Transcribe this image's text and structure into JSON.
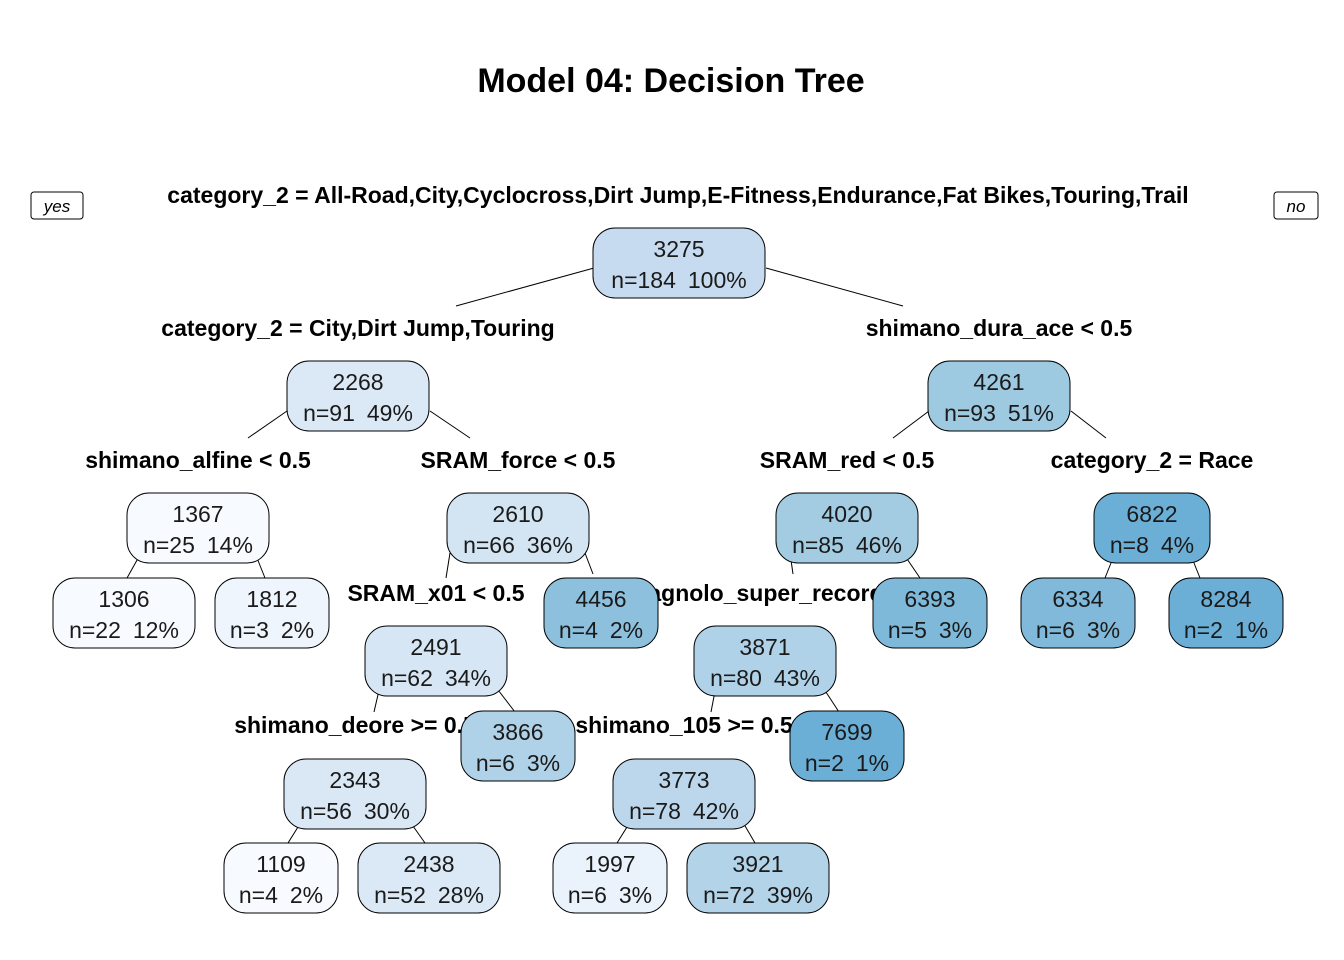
{
  "title": "Model 04: Decision Tree",
  "labels": {
    "yes": "yes",
    "no": "no"
  },
  "nodes": [
    {
      "id": "root",
      "value": "3275",
      "n": "n=184",
      "pct": "100%",
      "color": "#c6dbef"
    },
    {
      "id": "n2",
      "value": "2268",
      "n": "n=91",
      "pct": "49%",
      "color": "#dbe9f6"
    },
    {
      "id": "n3",
      "value": "4261",
      "n": "n=93",
      "pct": "51%",
      "color": "#9ecae1"
    },
    {
      "id": "n4",
      "value": "1367",
      "n": "n=25",
      "pct": "14%",
      "color": "#f7fbff"
    },
    {
      "id": "n5",
      "value": "2610",
      "n": "n=66",
      "pct": "36%",
      "color": "#d3e4f3"
    },
    {
      "id": "n6",
      "value": "4020",
      "n": "n=85",
      "pct": "46%",
      "color": "#a3cce3"
    },
    {
      "id": "n7",
      "value": "6822",
      "n": "n=8",
      "pct": "4%",
      "color": "#6baed6"
    },
    {
      "id": "n8",
      "value": "1306",
      "n": "n=22",
      "pct": "12%",
      "color": "#f7fbff"
    },
    {
      "id": "n9",
      "value": "1812",
      "n": "n=3",
      "pct": "2%",
      "color": "#eef5fc"
    },
    {
      "id": "n10",
      "value": "2491",
      "n": "n=62",
      "pct": "34%",
      "color": "#d6e6f4"
    },
    {
      "id": "n11",
      "value": "4456",
      "n": "n=4",
      "pct": "2%",
      "color": "#8dc0dd"
    },
    {
      "id": "n12",
      "value": "3871",
      "n": "n=80",
      "pct": "43%",
      "color": "#b0d2e8"
    },
    {
      "id": "n13",
      "value": "6393",
      "n": "n=5",
      "pct": "3%",
      "color": "#7fb9da"
    },
    {
      "id": "n14",
      "value": "6334",
      "n": "n=6",
      "pct": "3%",
      "color": "#80b9da"
    },
    {
      "id": "n15",
      "value": "8284",
      "n": "n=2",
      "pct": "1%",
      "color": "#6baed6"
    },
    {
      "id": "n20",
      "value": "2343",
      "n": "n=56",
      "pct": "30%",
      "color": "#dae8f5"
    },
    {
      "id": "n21",
      "value": "3866",
      "n": "n=6",
      "pct": "3%",
      "color": "#b0d2e8"
    },
    {
      "id": "n24",
      "value": "3773",
      "n": "n=78",
      "pct": "42%",
      "color": "#bcd7ec"
    },
    {
      "id": "n25",
      "value": "7699",
      "n": "n=2",
      "pct": "1%",
      "color": "#6baed6"
    },
    {
      "id": "n40",
      "value": "1109",
      "n": "n=4",
      "pct": "2%",
      "color": "#f7fbff"
    },
    {
      "id": "n41",
      "value": "2438",
      "n": "n=52",
      "pct": "28%",
      "color": "#dbe9f6"
    },
    {
      "id": "n48",
      "value": "1997",
      "n": "n=6",
      "pct": "3%",
      "color": "#eaf3fb"
    },
    {
      "id": "n49",
      "value": "3921",
      "n": "n=72",
      "pct": "39%",
      "color": "#b3d3e8"
    }
  ],
  "splits": [
    {
      "node": "root",
      "text": "category_2 = All-Road,City,Cyclocross,Dirt Jump,E-Fitness,Endurance,Fat Bikes,Touring,Trail"
    },
    {
      "node": "n2",
      "text": "category_2 = City,Dirt Jump,Touring"
    },
    {
      "node": "n3",
      "text": "shimano_dura_ace < 0.5"
    },
    {
      "node": "n4",
      "text": "shimano_alfine < 0.5"
    },
    {
      "node": "n5",
      "text": "SRAM_force < 0.5"
    },
    {
      "node": "n6",
      "text": "SRAM_red < 0.5"
    },
    {
      "node": "n7",
      "text": "category_2 = Race"
    },
    {
      "node": "n10",
      "text": "SRAM_x01 < 0.5"
    },
    {
      "node": "n12",
      "text": "campagnolo_super_record < 0.5"
    },
    {
      "node": "n20",
      "text": "shimano_deore >= 0.5"
    },
    {
      "node": "n24",
      "text": "shimano_105 >= 0.5"
    }
  ]
}
